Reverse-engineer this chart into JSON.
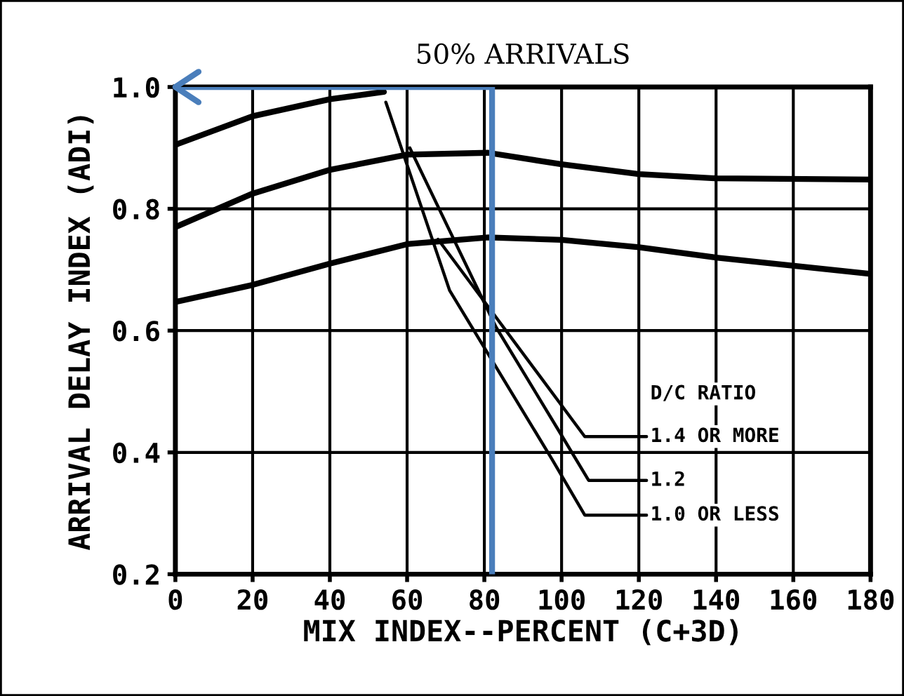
{
  "chart_data": {
    "type": "line",
    "title": "50% ARRIVALS",
    "xlabel": "MIX INDEX--PERCENT (C+3D)",
    "ylabel": "ARRIVAL DELAY INDEX (ADI)",
    "legend_title": "D/C RATIO",
    "xlim": [
      0,
      180
    ],
    "xticks": [
      0,
      20,
      40,
      60,
      80,
      100,
      120,
      140,
      160,
      180
    ],
    "ylim": [
      0.2,
      1.0
    ],
    "yticks": [
      0.2,
      0.4,
      0.6,
      0.8,
      {
        "value": 1.0,
        "label": "1.0"
      }
    ],
    "grid": true,
    "legend": false,
    "line_style": "solid",
    "series": [
      {
        "color": "#000000",
        "x": [
          0,
          20,
          40,
          54
        ],
        "values": [
          0.905,
          0.952,
          0.98,
          0.992
        ]
      },
      {
        "color": "#000000",
        "x": [
          0,
          20,
          40,
          60,
          81,
          100,
          120,
          140,
          180
        ],
        "values": [
          0.77,
          0.825,
          0.864,
          0.889,
          0.892,
          0.873,
          0.857,
          0.85,
          0.848
        ]
      },
      {
        "color": "#000000",
        "x": [
          0,
          20,
          40,
          60,
          81,
          100,
          120,
          140,
          180
        ],
        "values": [
          0.647,
          0.675,
          0.71,
          0.742,
          0.753,
          0.749,
          0.737,
          0.72,
          0.693
        ]
      },
      {
        "name": "1.4 OR MORE",
        "color": "#000000",
        "x": [
          68,
          106,
          122
        ],
        "values": [
          0.75,
          0.426,
          0.426
        ]
      },
      {
        "name": "1.2",
        "color": "#000000",
        "x": [
          60.7,
          83,
          100,
          107,
          122
        ],
        "values": [
          0.9,
          0.606,
          0.428,
          0.354,
          0.354
        ]
      },
      {
        "name": "1.0 OR LESS",
        "color": "#000000",
        "x": [
          54.5,
          71,
          97.5,
          106,
          122
        ],
        "values": [
          0.975,
          0.666,
          0.389,
          0.297,
          0.297
        ]
      },
      {
        "color": "#4a7ebb",
        "x": [
          82,
          82,
          0
        ],
        "values": [
          0.2,
          1.0,
          1.0
        ]
      }
    ]
  }
}
